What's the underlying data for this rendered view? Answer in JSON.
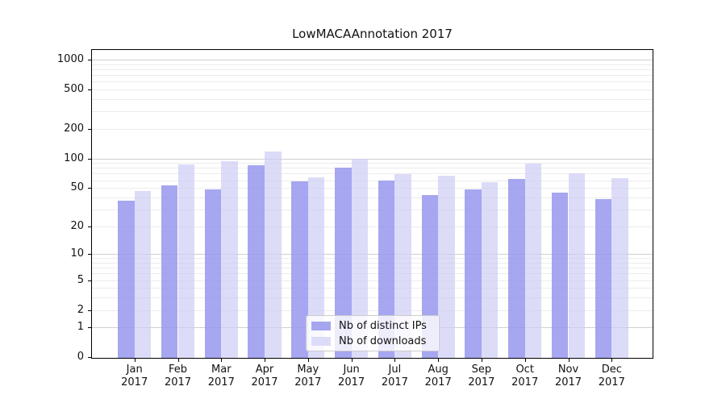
{
  "chart_data": {
    "type": "bar",
    "title": "LowMACAAnnotation 2017",
    "year_label": "2017",
    "categories": [
      "Jan",
      "Feb",
      "Mar",
      "Apr",
      "May",
      "Jun",
      "Jul",
      "Aug",
      "Sep",
      "Oct",
      "Nov",
      "Dec"
    ],
    "series": [
      {
        "name": "Nb of distinct IPs",
        "color": "rgba(150,150,238,0.85)",
        "legend_color": "#a5a5f0",
        "values": [
          37,
          53,
          48,
          85,
          58,
          80,
          60,
          42,
          48,
          62,
          45,
          38
        ]
      },
      {
        "name": "Nb of downloads",
        "color": "rgba(205,205,245,0.7)",
        "legend_color": "#dcdcf8",
        "values": [
          46,
          87,
          94,
          117,
          64,
          100,
          69,
          67,
          57,
          88,
          70,
          63
        ]
      }
    ],
    "yticks": [
      0,
      1,
      2,
      5,
      10,
      20,
      50,
      100,
      200,
      500,
      1000
    ],
    "scale": "log1p",
    "ylim": [
      0,
      1270
    ],
    "grid": true,
    "grid_major_values": [
      1,
      10,
      100,
      1000
    ],
    "legend_position": "inside-bottom-center",
    "xlabel": "",
    "ylabel": ""
  },
  "colors": {
    "grid_major": "#cfcfcf",
    "grid_minor": "#ececec",
    "spine": "#000000",
    "background": "#ffffff"
  }
}
